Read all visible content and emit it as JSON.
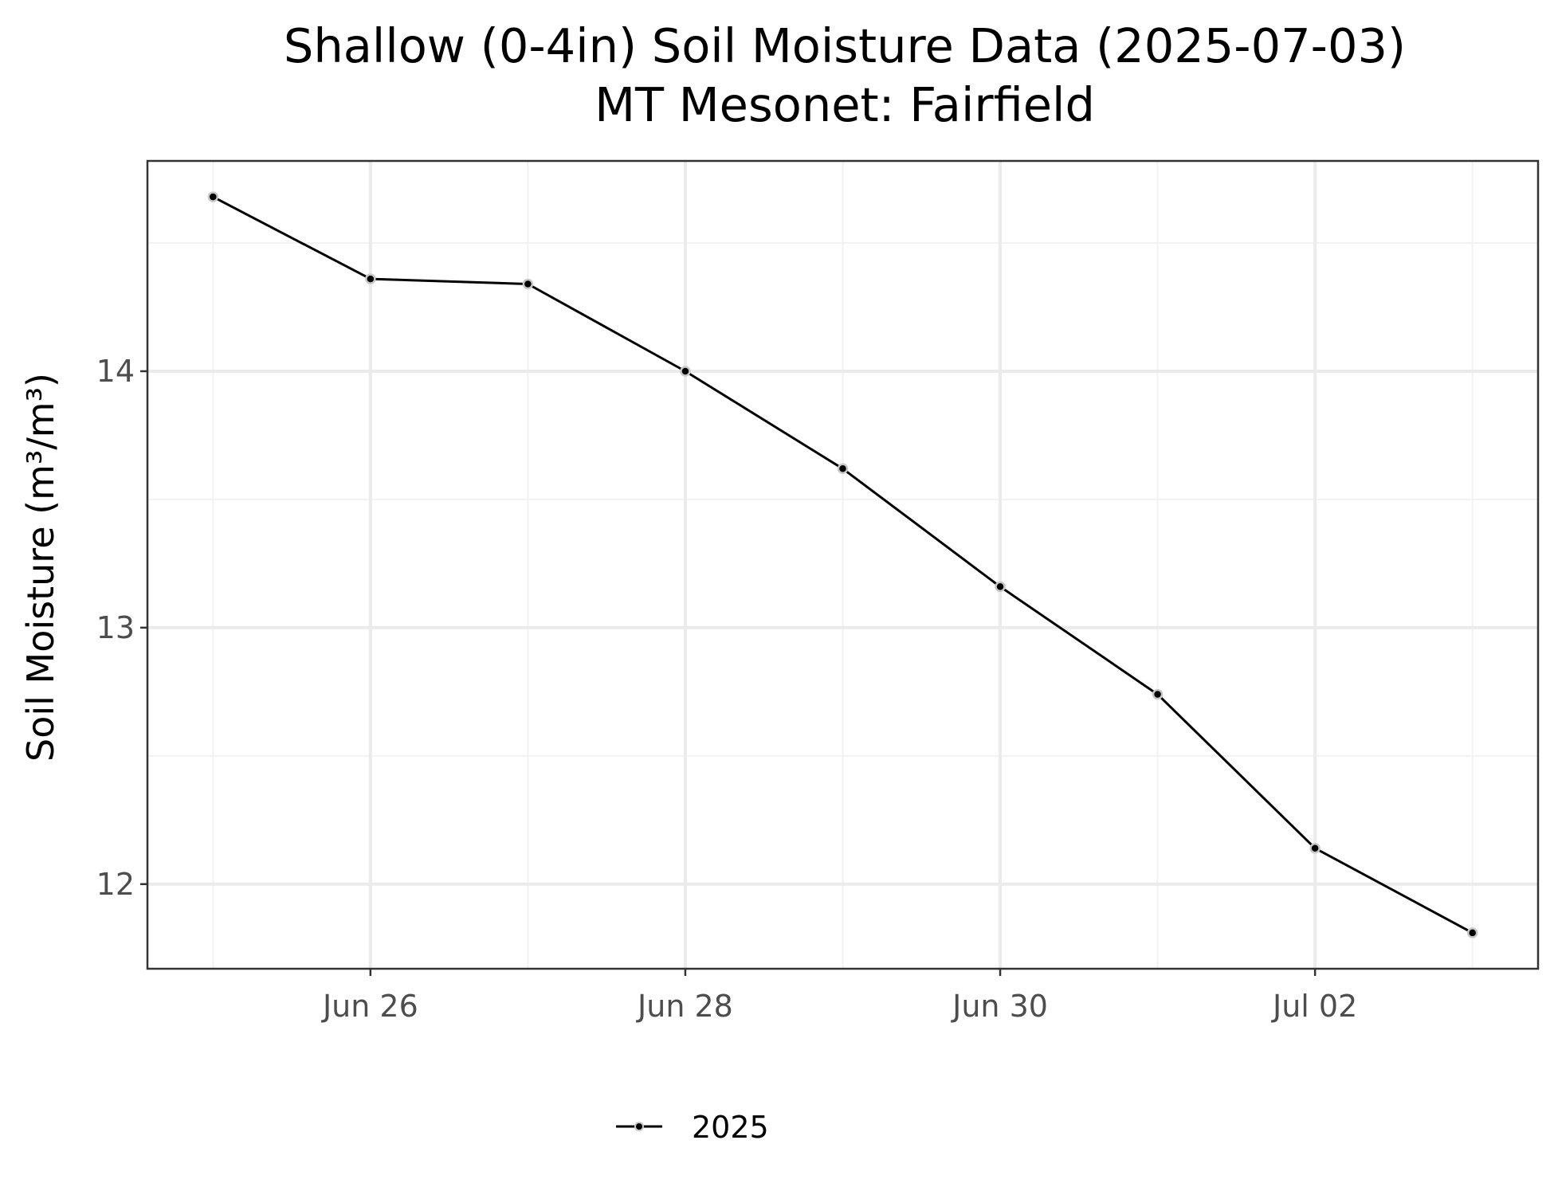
{
  "chart_data": {
    "type": "line",
    "title": "Shallow (0-4in) Soil Moisture Data (2025-07-03)",
    "subtitle": "MT Mesonet: Fairfield",
    "xlabel": "",
    "ylabel": "Soil Moisture (m³/m³)",
    "x": [
      "2025-06-25",
      "2025-06-26",
      "2025-06-27",
      "2025-06-28",
      "2025-06-29",
      "2025-06-30",
      "2025-07-01",
      "2025-07-02",
      "2025-07-03"
    ],
    "series": [
      {
        "name": "2025",
        "values": [
          14.68,
          14.36,
          14.34,
          14.0,
          13.62,
          13.16,
          12.74,
          12.14,
          11.81
        ]
      }
    ],
    "x_ticks": [
      {
        "date": "2025-06-26",
        "label": "Jun 26"
      },
      {
        "date": "2025-06-28",
        "label": "Jun 28"
      },
      {
        "date": "2025-06-30",
        "label": "Jun 30"
      },
      {
        "date": "2025-07-02",
        "label": "Jul 02"
      }
    ],
    "y_ticks": [
      12,
      13,
      14
    ],
    "ylim": [
      11.67,
      14.82
    ],
    "xlim": [
      "2025-06-24T14:00",
      "2025-07-03T10:00"
    ],
    "grid": true,
    "legend_position": "bottom",
    "colors": {
      "line": "#000000",
      "point": "#000000",
      "point_outline": "#c8c8c8",
      "panel_border": "#333333",
      "grid_major": "#ebebeb",
      "grid_minor": "#f2f2f2",
      "tick_label": "#4d4d4d"
    }
  }
}
